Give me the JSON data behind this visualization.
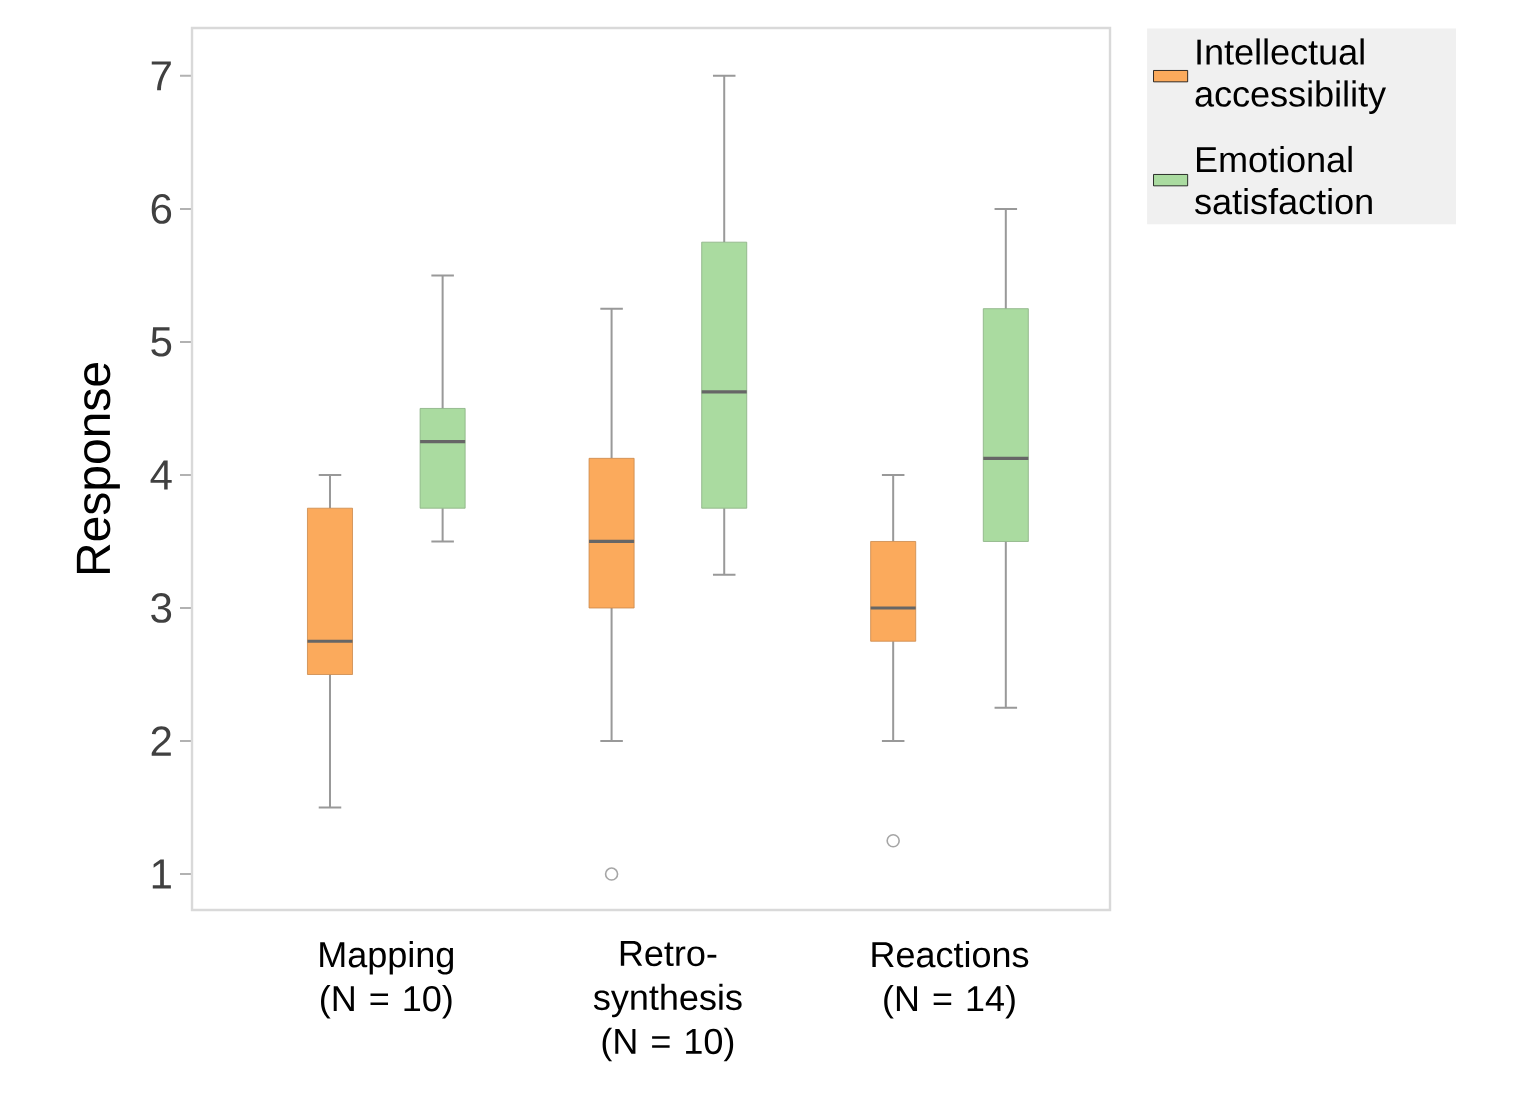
{
  "chart_data": {
    "type": "box",
    "ylabel": "Response",
    "categories": [
      "Mapping (N = 10)",
      "Retro-synthesis (N = 10)",
      "Reactions (N = 14)"
    ],
    "series": [
      {
        "name": "Intellectual accessibility",
        "color": "#fbaa5c",
        "boxes": [
          {
            "low": 1.5,
            "q1": 2.5,
            "median": 2.75,
            "q3": 3.75,
            "high": 4
          },
          {
            "low": 2,
            "q1": 3,
            "median": 3.5,
            "q3": 4.125,
            "high": 5.25,
            "outliers": [
              1
            ]
          },
          {
            "low": 2,
            "q1": 2.75,
            "median": 3,
            "q3": 3.5,
            "high": 4,
            "outliers": [
              1.25
            ]
          }
        ]
      },
      {
        "name": "Emotional satisfaction",
        "color": "#aadba0",
        "boxes": [
          {
            "low": 3.5,
            "q1": 3.75,
            "median": 4.25,
            "q3": 4.5,
            "high": 5.5
          },
          {
            "low": 3.25,
            "q1": 3.75,
            "median": 4.625,
            "q3": 5.75,
            "high": 7
          },
          {
            "low": 2.25,
            "q1": 3.5,
            "median": 4.125,
            "q3": 5.25,
            "high": 6
          }
        ]
      }
    ],
    "ylim": [
      0.73,
      7.36
    ],
    "yticks": [
      1,
      2,
      3,
      4,
      5,
      6,
      7
    ],
    "legend": "top right"
  }
}
